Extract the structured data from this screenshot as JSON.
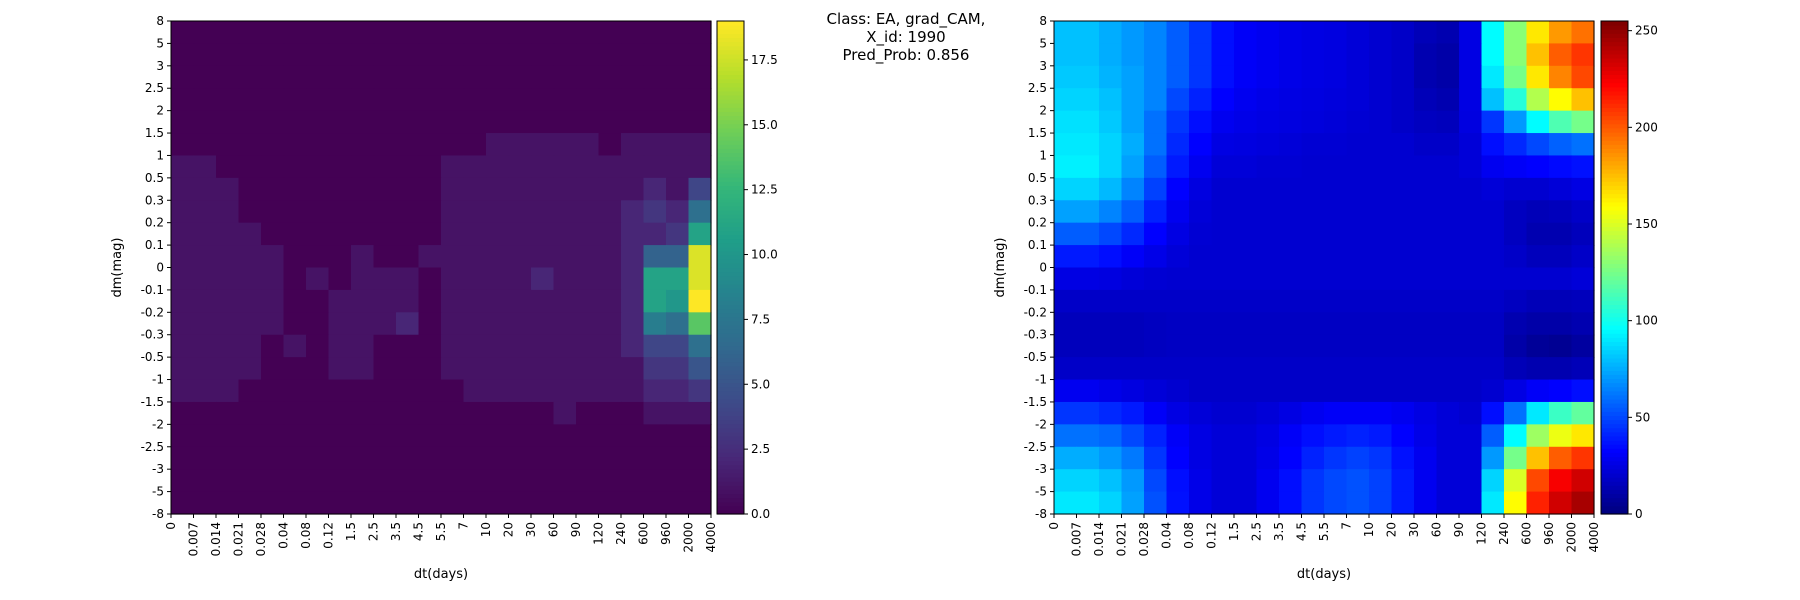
{
  "figure": {
    "title_lines": [
      "Class: EA, grad_CAM,",
      "X_id: 1990",
      "Pred_Prob: 0.856"
    ]
  },
  "chart_data": [
    {
      "type": "heatmap",
      "title": "",
      "xlabel": "dt(days)",
      "ylabel": "dm(mag)",
      "colormap": "viridis",
      "x_ticks": [
        "0",
        "0.007",
        "0.014",
        "0.021",
        "0.028",
        "0.04",
        "0.08",
        "0.12",
        "1.5",
        "2.5",
        "3.5",
        "4.5",
        "5.5",
        "7",
        "10",
        "20",
        "30",
        "60",
        "90",
        "120",
        "240",
        "600",
        "960",
        "2000",
        "4000"
      ],
      "y_ticks": [
        "8",
        "5",
        "3",
        "2.5",
        "2",
        "1.5",
        "1",
        "0.5",
        "0.3",
        "0.2",
        "0.1",
        "0",
        "-0.1",
        "-0.2",
        "-0.3",
        "-0.5",
        "-1",
        "-1.5",
        "-2",
        "-2.5",
        "-3",
        "-5",
        "-8"
      ],
      "colorbar": {
        "range": [
          0,
          19
        ],
        "ticks": [
          0.0,
          2.5,
          5.0,
          7.5,
          10.0,
          12.5,
          15.0,
          17.5
        ],
        "tick_labels": [
          "0.0",
          "2.5",
          "5.0",
          "7.5",
          "10.0",
          "12.5",
          "15.0",
          "17.5"
        ]
      },
      "values": [
        [
          0,
          0,
          0,
          0,
          0,
          0,
          0,
          0,
          0,
          0,
          0,
          0,
          0,
          0,
          0,
          0,
          0,
          0,
          0,
          0,
          0,
          0,
          0,
          0
        ],
        [
          0,
          0,
          0,
          0,
          0,
          0,
          0,
          0,
          0,
          0,
          0,
          0,
          0,
          0,
          0,
          0,
          0,
          0,
          0,
          0,
          0,
          0,
          0,
          0
        ],
        [
          0,
          0,
          0,
          0,
          0,
          0,
          0,
          0,
          0,
          0,
          0,
          0,
          0,
          0,
          0,
          0,
          0,
          0,
          0,
          0,
          0,
          0,
          0,
          0
        ],
        [
          0,
          0,
          0,
          0,
          0,
          0,
          0,
          0,
          0,
          0,
          0,
          0,
          0,
          0,
          0,
          0,
          0,
          0,
          0,
          0,
          0,
          0,
          0,
          0
        ],
        [
          0,
          0,
          0,
          0,
          0,
          0,
          0,
          0,
          0,
          0,
          0,
          0,
          0,
          0,
          0,
          0,
          0,
          0,
          0,
          0,
          0,
          0,
          0,
          0
        ],
        [
          0,
          0,
          0,
          0,
          0,
          0,
          0,
          0,
          0,
          0,
          0,
          0,
          0,
          0,
          1,
          1,
          1,
          1,
          1,
          0,
          1,
          1,
          1,
          1
        ],
        [
          1,
          1,
          0,
          0,
          0,
          0,
          0,
          0,
          0,
          0,
          0,
          0,
          1,
          1,
          1,
          1,
          1,
          1,
          1,
          1,
          1,
          1,
          1,
          1
        ],
        [
          1,
          1,
          1,
          0,
          0,
          0,
          0,
          0,
          0,
          0,
          0,
          0,
          1,
          1,
          1,
          1,
          1,
          1,
          1,
          1,
          1,
          2,
          1,
          4
        ],
        [
          1,
          1,
          1,
          0,
          0,
          0,
          0,
          0,
          0,
          0,
          0,
          0,
          1,
          1,
          1,
          1,
          1,
          1,
          1,
          1,
          2,
          3,
          2,
          7
        ],
        [
          1,
          1,
          1,
          1,
          0,
          0,
          0,
          0,
          0,
          0,
          0,
          0,
          1,
          1,
          1,
          1,
          1,
          1,
          1,
          1,
          2,
          2,
          3,
          11
        ],
        [
          1,
          1,
          1,
          1,
          1,
          0,
          0,
          0,
          1,
          0,
          0,
          1,
          1,
          1,
          1,
          1,
          1,
          1,
          1,
          1,
          2,
          6,
          6,
          18
        ],
        [
          1,
          1,
          1,
          1,
          1,
          0,
          1,
          0,
          1,
          1,
          1,
          0,
          1,
          1,
          1,
          1,
          2,
          1,
          1,
          1,
          2,
          11,
          11,
          18
        ],
        [
          1,
          1,
          1,
          1,
          1,
          0,
          0,
          1,
          1,
          1,
          1,
          0,
          1,
          1,
          1,
          1,
          1,
          1,
          1,
          1,
          2,
          11,
          10,
          19
        ],
        [
          1,
          1,
          1,
          1,
          1,
          0,
          0,
          1,
          1,
          1,
          2,
          0,
          1,
          1,
          1,
          1,
          1,
          1,
          1,
          1,
          2,
          8,
          7,
          14
        ],
        [
          1,
          1,
          1,
          1,
          0,
          1,
          0,
          1,
          1,
          0,
          0,
          0,
          1,
          1,
          1,
          1,
          1,
          1,
          1,
          1,
          2,
          4,
          4,
          7
        ],
        [
          1,
          1,
          1,
          1,
          0,
          0,
          0,
          1,
          1,
          0,
          0,
          0,
          1,
          1,
          1,
          1,
          1,
          1,
          1,
          1,
          1,
          3,
          3,
          5
        ],
        [
          1,
          1,
          1,
          0,
          0,
          0,
          0,
          0,
          0,
          0,
          0,
          0,
          0,
          1,
          1,
          1,
          1,
          1,
          1,
          1,
          1,
          2,
          2,
          3
        ],
        [
          0,
          0,
          0,
          0,
          0,
          0,
          0,
          0,
          0,
          0,
          0,
          0,
          0,
          0,
          0,
          0,
          0,
          1,
          0,
          0,
          0,
          1,
          1,
          1
        ],
        [
          0,
          0,
          0,
          0,
          0,
          0,
          0,
          0,
          0,
          0,
          0,
          0,
          0,
          0,
          0,
          0,
          0,
          0,
          0,
          0,
          0,
          0,
          0,
          0
        ],
        [
          0,
          0,
          0,
          0,
          0,
          0,
          0,
          0,
          0,
          0,
          0,
          0,
          0,
          0,
          0,
          0,
          0,
          0,
          0,
          0,
          0,
          0,
          0,
          0
        ],
        [
          0,
          0,
          0,
          0,
          0,
          0,
          0,
          0,
          0,
          0,
          0,
          0,
          0,
          0,
          0,
          0,
          0,
          0,
          0,
          0,
          0,
          0,
          0,
          0
        ],
        [
          0,
          0,
          0,
          0,
          0,
          0,
          0,
          0,
          0,
          0,
          0,
          0,
          0,
          0,
          0,
          0,
          0,
          0,
          0,
          0,
          0,
          0,
          0,
          0
        ]
      ]
    },
    {
      "type": "heatmap",
      "title": "",
      "xlabel": "dt(days)",
      "ylabel": "dm(mag)",
      "colormap": "jet",
      "x_ticks": [
        "0",
        "0.007",
        "0.014",
        "0.021",
        "0.028",
        "0.04",
        "0.08",
        "0.12",
        "1.5",
        "2.5",
        "3.5",
        "4.5",
        "5.5",
        "7",
        "10",
        "20",
        "30",
        "60",
        "90",
        "120",
        "240",
        "600",
        "960",
        "2000",
        "4000"
      ],
      "y_ticks": [
        "8",
        "5",
        "3",
        "2.5",
        "2",
        "1.5",
        "1",
        "0.5",
        "0.3",
        "0.2",
        "0.1",
        "0",
        "-0.1",
        "-0.2",
        "-0.3",
        "-0.5",
        "-1",
        "-1.5",
        "-2",
        "-2.5",
        "-3",
        "-5",
        "-8"
      ],
      "colorbar": {
        "range": [
          0,
          255
        ],
        "ticks": [
          0,
          50,
          100,
          150,
          200,
          250
        ],
        "tick_labels": [
          "0",
          "50",
          "100",
          "150",
          "200",
          "250"
        ]
      },
      "values": [
        [
          80,
          80,
          75,
          70,
          65,
          55,
          45,
          35,
          30,
          28,
          26,
          25,
          24,
          22,
          20,
          18,
          14,
          12,
          25,
          95,
          130,
          165,
          185,
          195
        ],
        [
          80,
          80,
          75,
          70,
          65,
          55,
          45,
          35,
          30,
          28,
          26,
          25,
          24,
          22,
          20,
          18,
          12,
          10,
          25,
          95,
          130,
          175,
          200,
          210
        ],
        [
          82,
          82,
          77,
          72,
          65,
          55,
          45,
          35,
          30,
          28,
          26,
          25,
          24,
          22,
          20,
          18,
          12,
          10,
          25,
          90,
          125,
          165,
          190,
          205
        ],
        [
          85,
          85,
          80,
          72,
          65,
          50,
          40,
          32,
          28,
          26,
          25,
          24,
          23,
          22,
          20,
          18,
          14,
          12,
          25,
          80,
          105,
          140,
          160,
          175
        ],
        [
          88,
          88,
          82,
          72,
          60,
          45,
          35,
          28,
          26,
          25,
          24,
          23,
          22,
          21,
          20,
          18,
          16,
          15,
          24,
          45,
          70,
          95,
          115,
          125
        ],
        [
          90,
          90,
          85,
          75,
          60,
          42,
          32,
          25,
          24,
          23,
          22,
          21,
          21,
          20,
          20,
          20,
          18,
          18,
          22,
          35,
          42,
          50,
          56,
          60
        ],
        [
          92,
          92,
          85,
          72,
          55,
          38,
          28,
          22,
          22,
          21,
          21,
          20,
          20,
          20,
          20,
          20,
          20,
          20,
          22,
          28,
          30,
          32,
          34,
          36
        ],
        [
          85,
          85,
          78,
          65,
          48,
          32,
          24,
          20,
          20,
          20,
          20,
          20,
          20,
          20,
          20,
          20,
          20,
          20,
          20,
          22,
          20,
          20,
          22,
          25
        ],
        [
          72,
          72,
          65,
          55,
          40,
          28,
          22,
          20,
          20,
          20,
          20,
          20,
          20,
          20,
          20,
          20,
          20,
          20,
          20,
          20,
          16,
          14,
          15,
          18
        ],
        [
          55,
          55,
          50,
          42,
          32,
          25,
          21,
          20,
          20,
          20,
          20,
          20,
          20,
          20,
          20,
          20,
          20,
          20,
          20,
          20,
          16,
          12,
          12,
          15
        ],
        [
          38,
          38,
          35,
          30,
          26,
          22,
          20,
          20,
          20,
          20,
          20,
          20,
          20,
          20,
          20,
          20,
          20,
          20,
          20,
          20,
          18,
          15,
          15,
          18
        ],
        [
          25,
          25,
          24,
          22,
          21,
          20,
          20,
          20,
          20,
          20,
          20,
          20,
          20,
          20,
          20,
          20,
          20,
          20,
          20,
          20,
          20,
          20,
          20,
          22
        ],
        [
          18,
          18,
          18,
          18,
          18,
          18,
          18,
          18,
          18,
          18,
          18,
          18,
          18,
          18,
          18,
          18,
          18,
          18,
          18,
          18,
          16,
          14,
          14,
          15
        ],
        [
          15,
          15,
          15,
          15,
          16,
          17,
          17,
          17,
          17,
          17,
          17,
          17,
          17,
          17,
          17,
          17,
          17,
          17,
          17,
          17,
          12,
          10,
          10,
          12
        ],
        [
          15,
          15,
          15,
          15,
          16,
          17,
          17,
          17,
          17,
          17,
          17,
          17,
          17,
          17,
          17,
          17,
          17,
          17,
          17,
          17,
          10,
          6,
          5,
          8
        ],
        [
          18,
          18,
          18,
          18,
          18,
          18,
          18,
          18,
          18,
          18,
          18,
          18,
          18,
          18,
          18,
          18,
          18,
          18,
          18,
          18,
          14,
          12,
          12,
          14
        ],
        [
          28,
          28,
          26,
          24,
          22,
          20,
          18,
          18,
          18,
          18,
          18,
          18,
          18,
          18,
          18,
          18,
          18,
          18,
          18,
          20,
          25,
          30,
          32,
          35
        ],
        [
          45,
          45,
          42,
          38,
          30,
          25,
          22,
          20,
          20,
          22,
          25,
          28,
          30,
          30,
          30,
          28,
          25,
          22,
          20,
          35,
          60,
          90,
          110,
          120
        ],
        [
          60,
          60,
          58,
          50,
          40,
          30,
          25,
          22,
          22,
          25,
          30,
          35,
          38,
          40,
          38,
          32,
          26,
          22,
          22,
          55,
          95,
          135,
          155,
          165
        ],
        [
          75,
          75,
          70,
          62,
          45,
          32,
          25,
          22,
          22,
          26,
          32,
          40,
          45,
          48,
          45,
          36,
          28,
          22,
          22,
          70,
          125,
          175,
          200,
          210
        ],
        [
          85,
          85,
          80,
          70,
          50,
          35,
          26,
          22,
          22,
          28,
          35,
          45,
          50,
          52,
          48,
          38,
          28,
          22,
          22,
          85,
          150,
          205,
          225,
          235
        ],
        [
          90,
          90,
          85,
          72,
          52,
          36,
          26,
          22,
          22,
          28,
          35,
          45,
          50,
          52,
          48,
          38,
          28,
          22,
          22,
          90,
          160,
          215,
          235,
          245
        ]
      ]
    }
  ]
}
